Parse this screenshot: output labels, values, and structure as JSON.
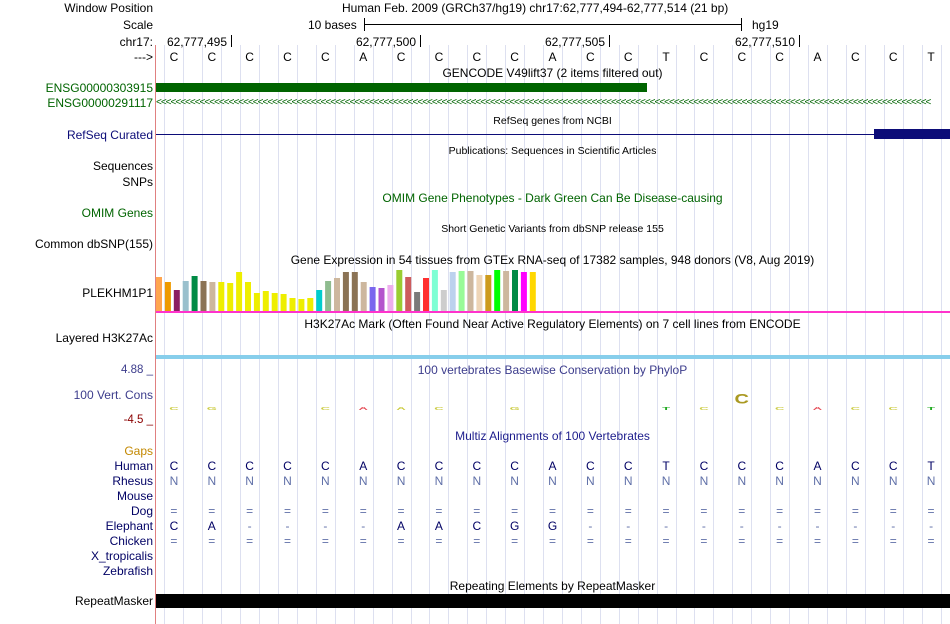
{
  "header": {
    "window_position_label": "Window Position",
    "window_position_value": "Human Feb. 2009 (GRCh37/hg19)   chr17:62,777,494-62,777,514 (21 bp)",
    "scale_label": "Scale",
    "scale_value": "10 bases",
    "assembly": "hg19",
    "chrom_label": "chr17:",
    "arrow_label": "--->",
    "coordinates": [
      "62,777,495",
      "62,777,500",
      "62,777,505",
      "62,777,510"
    ]
  },
  "bases": [
    "C",
    "C",
    "C",
    "C",
    "C",
    "A",
    "C",
    "C",
    "C",
    "C",
    "A",
    "C",
    "C",
    "T",
    "C",
    "C",
    "C",
    "A",
    "C",
    "C",
    "T"
  ],
  "tracks": {
    "gencode_title": "GENCODE V49lift37 (2 items filtered out)",
    "gencode_items": [
      "ENSG00000303915",
      "ENSG00000291117"
    ],
    "refseq_label": "RefSeq Curated",
    "refseq_title": "RefSeq genes from NCBI",
    "publications_title": "Publications: Sequences in Scientific Articles",
    "sequences_label": "Sequences",
    "snps_label": "SNPs",
    "omim_title": "OMIM Gene Phenotypes - Dark Green Can Be Disease-causing",
    "omim_label": "OMIM Genes",
    "dbsnp_title": "Short Genetic Variants from dbSNP release 155",
    "dbsnp_label": "Common dbSNP(155)",
    "gtex_title": "Gene Expression in 54 tissues from GTEx RNA-seq of 17382 samples, 948 donors (V8, Aug 2019)",
    "gtex_label": "PLEKHM1P1",
    "h3k27ac_title": "H3K27Ac Mark (Often Found Near Active Regulatory Elements) on 7 cell lines from ENCODE",
    "h3k27ac_label": "Layered H3K27Ac",
    "cons_max": "4.88 _",
    "cons_min": "-4.5 _",
    "cons_title": "100 vertebrates Basewise Conservation by PhyloP",
    "cons_label": "100 Vert. Cons",
    "gaps_label": "Gaps",
    "multiz_title": "Multiz Alignments of 100 Vertebrates",
    "repeat_title": "Repeating Elements by RepeatMasker",
    "repeat_label": "RepeatMasker"
  },
  "alignment": {
    "species": [
      "Human",
      "Rhesus",
      "Mouse",
      "Dog",
      "Elephant",
      "Chicken",
      "X_tropicalis",
      "Zebrafish"
    ],
    "rows": [
      [
        "C",
        "C",
        "C",
        "C",
        "C",
        "A",
        "C",
        "C",
        "C",
        "C",
        "A",
        "C",
        "C",
        "T",
        "C",
        "C",
        "C",
        "A",
        "C",
        "C",
        "T"
      ],
      [
        "N",
        "N",
        "N",
        "N",
        "N",
        "N",
        "N",
        "N",
        "N",
        "N",
        "N",
        "N",
        "N",
        "N",
        "N",
        "N",
        "N",
        "N",
        "N",
        "N",
        "N"
      ],
      [],
      [
        "=",
        "=",
        "=",
        "=",
        "=",
        "=",
        "=",
        "=",
        "=",
        "=",
        "=",
        "=",
        "=",
        "=",
        "=",
        "=",
        "=",
        "=",
        "=",
        "=",
        "="
      ],
      [
        "C",
        "A",
        "-",
        "-",
        "-",
        "-",
        "A",
        "A",
        "C",
        "G",
        "G",
        "-",
        "-",
        "-",
        "-",
        "-",
        "-",
        "-",
        "-",
        "-",
        "-"
      ],
      [
        "=",
        "=",
        "=",
        "=",
        "=",
        "=",
        "=",
        "=",
        "=",
        "=",
        "=",
        "=",
        "=",
        "=",
        "=",
        "=",
        "=",
        "=",
        "=",
        "=",
        "="
      ],
      [],
      []
    ]
  },
  "gtex_colors": [
    "#ffa54f",
    "#ee9a00",
    "#8b1c62",
    "#9ac0cd",
    "#008b45",
    "#8b7355",
    "#cdb79e",
    "#eeee00",
    "#eeee00",
    "#eeee00",
    "#eeee00",
    "#eeee00",
    "#eeee00",
    "#eeee00",
    "#eeee00",
    "#eeee00",
    "#eeee00",
    "#eeee00",
    "#00cdcd",
    "#8fbc8f",
    "#cdb79e",
    "#8b7355",
    "#8b7355",
    "#cdb79e",
    "#7a67ee",
    "#b452cd",
    "#eeaeee",
    "#9acd32",
    "#cd5c5c",
    "#7a7a7a",
    "#ff3030",
    "#7fffd4",
    "#cdcdcd",
    "#bcd2ee",
    "#98fb98",
    "#cdb79e",
    "#eed5b7",
    "#cd9b1d",
    "#00ff00",
    "#cdb79e",
    "#008b45",
    "#ff00ff",
    "#ffd700"
  ],
  "gtex_values": [
    0.82,
    0.7,
    0.5,
    0.72,
    0.83,
    0.72,
    0.7,
    0.7,
    0.66,
    0.92,
    0.7,
    0.42,
    0.48,
    0.42,
    0.4,
    0.32,
    0.28,
    0.32,
    0.5,
    0.72,
    0.78,
    0.92,
    0.92,
    0.68,
    0.58,
    0.55,
    0.62,
    0.98,
    0.82,
    0.45,
    0.78,
    0.98,
    0.5,
    0.92,
    0.95,
    0.95,
    0.85,
    0.85,
    0.98,
    0.95,
    0.98,
    0.92,
    0.92
  ],
  "colors": {
    "gencode": "#006400",
    "refseq": "#0c0c78",
    "omim": "#006400",
    "cons_label": "#3c3c8c",
    "multiz": "#1c1c8c",
    "gaps": "#c38800",
    "species": "#000064",
    "h3k27ac_line": "#87ceeb",
    "gtex_line": "#ff33cc"
  },
  "logos": [
    {
      "col": 0,
      "glyph": "C",
      "color": "#cccc44"
    },
    {
      "col": 1,
      "glyph": "G",
      "color": "#cccc44"
    },
    {
      "col": 4,
      "glyph": "C",
      "color": "#cccc44"
    },
    {
      "col": 5,
      "glyph": "A",
      "color": "#e6505a"
    },
    {
      "col": 6,
      "glyph": "A",
      "color": "#cccc44"
    },
    {
      "col": 7,
      "glyph": "C",
      "color": "#cccc44"
    },
    {
      "col": 9,
      "glyph": "G",
      "color": "#cccc44"
    },
    {
      "col": 13,
      "glyph": "T",
      "color": "#22aa22"
    },
    {
      "col": 14,
      "glyph": "C",
      "color": "#cccc44"
    },
    {
      "col": 15,
      "glyph": "C",
      "color": "#aa9922"
    },
    {
      "col": 16,
      "glyph": "C",
      "color": "#cccc44"
    },
    {
      "col": 17,
      "glyph": "A",
      "color": "#e6505a"
    },
    {
      "col": 18,
      "glyph": "C",
      "color": "#cccc44"
    },
    {
      "col": 19,
      "glyph": "C",
      "color": "#cccc44"
    },
    {
      "col": 20,
      "glyph": "T",
      "color": "#22aa22"
    }
  ]
}
